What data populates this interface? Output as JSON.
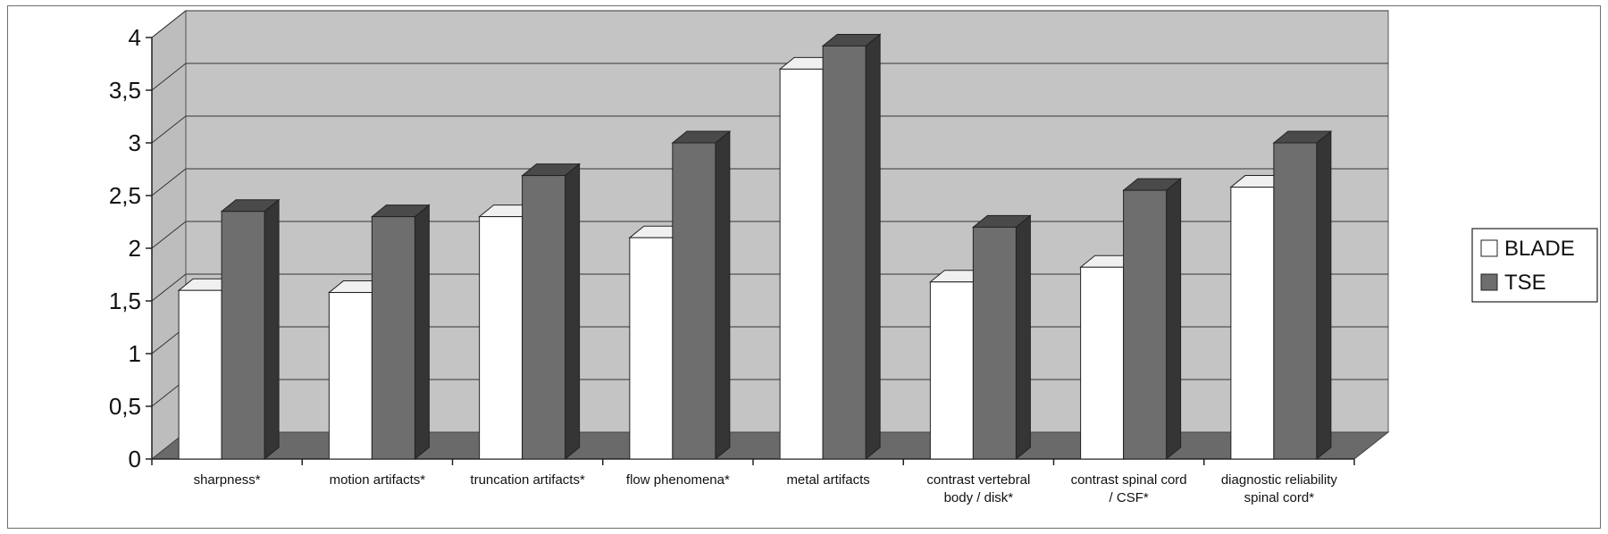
{
  "chart_data": {
    "type": "bar",
    "style": "3d-clustered",
    "categories": [
      [
        "sharpness*"
      ],
      [
        "motion artifacts*"
      ],
      [
        "truncation artifacts*"
      ],
      [
        "flow phenomena*"
      ],
      [
        "metal artifacts"
      ],
      [
        "contrast vertebral",
        "body / disk*"
      ],
      [
        "contrast spinal cord",
        "/ CSF*"
      ],
      [
        "diagnostic reliability",
        "spinal cord*"
      ]
    ],
    "series": [
      {
        "name": "BLADE",
        "values": [
          1.6,
          1.58,
          2.3,
          2.1,
          3.7,
          1.68,
          1.82,
          2.58
        ],
        "color": "#ffffff"
      },
      {
        "name": "TSE",
        "values": [
          2.35,
          2.3,
          2.69,
          3.0,
          3.92,
          2.2,
          2.55,
          3.0
        ],
        "color": "#6e6e6e"
      }
    ],
    "yticks": [
      "0",
      "0,5",
      "1",
      "1,5",
      "2",
      "2,5",
      "3",
      "3,5",
      "4"
    ],
    "ylim": [
      0,
      4
    ],
    "grid": true,
    "legend_position": "right",
    "wall_color": "#c4c4c4",
    "floor_color": "#6a6a6a"
  }
}
